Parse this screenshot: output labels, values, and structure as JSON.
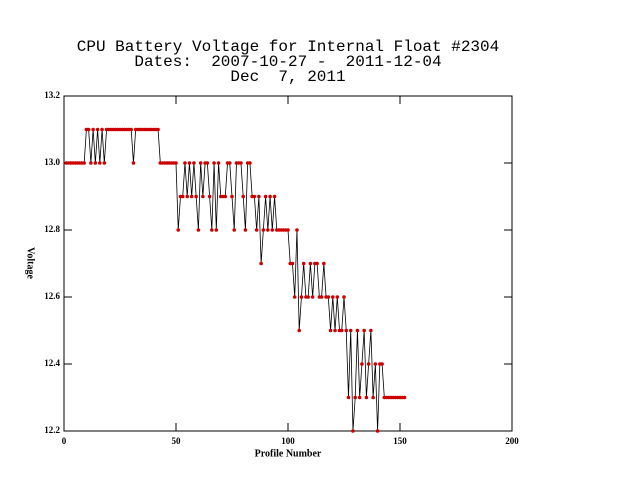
{
  "chart_data": {
    "type": "line",
    "title": [
      "CPU Battery Voltage for Internal Float #2304",
      "Dates:  2007-10-27 -  2011-12-04",
      "Dec  7, 2011"
    ],
    "x_label": "Profile Number",
    "y_label": "Voltage",
    "xlim": [
      0,
      200
    ],
    "xticks": [
      0,
      50,
      100,
      150,
      200
    ],
    "ylim": [
      12.2,
      13.2
    ],
    "yticks": [
      12.2,
      12.4,
      12.6,
      12.8,
      {
        "value": 13,
        "label": "13.0"
      },
      13.2
    ],
    "line_color": "#000000",
    "marker_color": "#cc0000",
    "x": [
      1,
      2,
      3,
      4,
      5,
      6,
      7,
      8,
      9,
      10,
      11,
      12,
      13,
      14,
      15,
      16,
      17,
      18,
      19,
      20,
      21,
      22,
      23,
      24,
      25,
      26,
      27,
      28,
      29,
      30,
      31,
      32,
      33,
      34,
      35,
      36,
      37,
      38,
      39,
      40,
      41,
      42,
      43,
      44,
      45,
      46,
      47,
      48,
      49,
      50,
      51,
      52,
      53,
      54,
      55,
      56,
      57,
      58,
      59,
      60,
      61,
      62,
      63,
      64,
      65,
      66,
      67,
      68,
      69,
      70,
      71,
      72,
      73,
      74,
      75,
      76,
      77,
      78,
      79,
      80,
      81,
      82,
      83,
      84,
      85,
      86,
      87,
      88,
      89,
      90,
      91,
      92,
      93,
      94,
      95,
      96,
      97,
      98,
      99,
      100,
      101,
      102,
      103,
      104,
      105,
      106,
      107,
      108,
      109,
      110,
      111,
      112,
      113,
      114,
      115,
      116,
      117,
      118,
      119,
      120,
      121,
      122,
      123,
      124,
      125,
      126,
      127,
      128,
      129,
      130,
      131,
      132,
      133,
      134,
      135,
      136,
      137,
      138,
      139,
      140,
      141,
      142,
      143,
      144,
      145,
      146,
      147,
      148,
      149,
      150,
      151,
      152
    ],
    "values": [
      13,
      13,
      13,
      13,
      13,
      13,
      13,
      13,
      13,
      13.1,
      13.1,
      13,
      13.1,
      13,
      13.1,
      13,
      13.1,
      13,
      13.1,
      13.1,
      13.1,
      13.1,
      13.1,
      13.1,
      13.1,
      13.1,
      13.1,
      13.1,
      13.1,
      13.1,
      13,
      13.1,
      13.1,
      13.1,
      13.1,
      13.1,
      13.1,
      13.1,
      13.1,
      13.1,
      13.1,
      13.1,
      13,
      13,
      13,
      13,
      13,
      13,
      13,
      13,
      12.8,
      12.9,
      12.9,
      13,
      12.9,
      13,
      12.9,
      13,
      12.9,
      12.8,
      13,
      12.9,
      13,
      13,
      12.9,
      12.8,
      13,
      12.8,
      13,
      12.9,
      12.9,
      12.9,
      13,
      13,
      12.9,
      12.8,
      13,
      13,
      13,
      12.9,
      12.8,
      13,
      13,
      12.9,
      12.9,
      12.8,
      12.9,
      12.7,
      12.8,
      12.9,
      12.8,
      12.9,
      12.8,
      12.9,
      12.8,
      12.8,
      12.8,
      12.8,
      12.8,
      12.8,
      12.7,
      12.7,
      12.6,
      12.8,
      12.5,
      12.6,
      12.7,
      12.6,
      12.6,
      12.7,
      12.6,
      12.7,
      12.7,
      12.6,
      12.6,
      12.7,
      12.6,
      12.6,
      12.5,
      12.6,
      12.5,
      12.6,
      12.5,
      12.5,
      12.6,
      12.5,
      12.3,
      12.5,
      12.2,
      12.3,
      12.5,
      12.3,
      12.4,
      12.5,
      12.3,
      12.4,
      12.5,
      12.3,
      12.4,
      12.2,
      12.4,
      12.4,
      12.3,
      12.3,
      12.3,
      12.3,
      12.3,
      12.3,
      12.3,
      12.3,
      12.3,
      12.3
    ]
  }
}
